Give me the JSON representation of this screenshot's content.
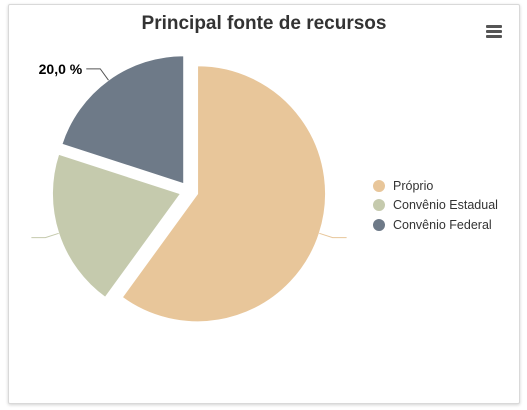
{
  "chart_data": {
    "type": "pie",
    "title": "Principal fonte de recursos",
    "slices": [
      {
        "name": "Próprio",
        "value": 60.0,
        "color": "#e8c69a"
      },
      {
        "name": "Convênio Estadual",
        "value": 20.0,
        "color": "#c5caad"
      },
      {
        "name": "Convênio Federal",
        "value": 20.0,
        "color": "#6e7a88"
      }
    ],
    "data_labels": [
      {
        "series": "Convênio Federal",
        "text": "20,0 %"
      }
    ],
    "legend_position": "right"
  },
  "toolbar": {
    "menu_icon": "hamburger-menu-icon"
  }
}
